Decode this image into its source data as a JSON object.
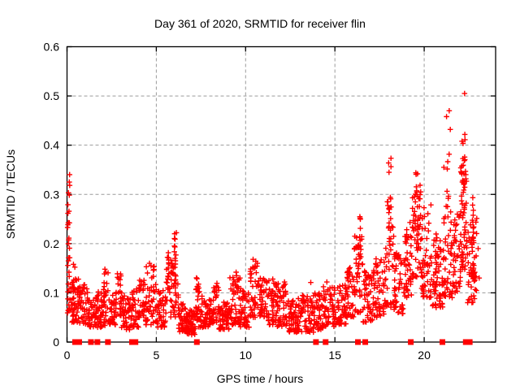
{
  "chart_data": {
    "type": "scatter",
    "title": "Day 361 of 2020, SRMTID for receiver flin",
    "xlabel": "GPS time / hours",
    "ylabel": "SRMTID / TECUs",
    "xlim": [
      0,
      24
    ],
    "ylim": [
      0,
      0.6
    ],
    "grid": true,
    "legend": "none",
    "xticks": [
      {
        "v": 0,
        "label": "0"
      },
      {
        "v": 5,
        "label": "5"
      },
      {
        "v": 10,
        "label": "10"
      },
      {
        "v": 15,
        "label": "15"
      },
      {
        "v": 20,
        "label": "20"
      }
    ],
    "yticks": [
      {
        "v": 0,
        "label": "0"
      },
      {
        "v": 0.1,
        "label": "0.1"
      },
      {
        "v": 0.2,
        "label": "0.2"
      },
      {
        "v": 0.3,
        "label": "0.3"
      },
      {
        "v": 0.4,
        "label": "0.4"
      },
      {
        "v": 0.5,
        "label": "0.5"
      },
      {
        "v": 0.6,
        "label": "0.6"
      }
    ],
    "colors": {
      "marker": "#ff0000",
      "grid": "#9b9b9b",
      "frame": "#000000"
    },
    "seed": 361,
    "series": [
      {
        "name": "srmtid-points",
        "marker": "plus",
        "model": {
          "bands": [
            [
              0.2,
              0.7,
              0.04,
              0.13,
              45
            ],
            [
              0.3,
              0.55,
              0.1,
              0.16,
              8
            ],
            [
              0.7,
              1.2,
              0.035,
              0.12,
              45
            ],
            [
              1.2,
              1.6,
              0.03,
              0.085,
              30
            ],
            [
              1.6,
              2.2,
              0.03,
              0.11,
              55
            ],
            [
              2.05,
              2.35,
              0.06,
              0.145,
              14
            ],
            [
              2.35,
              2.75,
              0.035,
              0.1,
              35
            ],
            [
              2.75,
              3.05,
              0.05,
              0.145,
              25
            ],
            [
              3.05,
              3.65,
              0.025,
              0.095,
              50
            ],
            [
              3.65,
              4.0,
              0.03,
              0.11,
              30
            ],
            [
              4.0,
              4.35,
              0.05,
              0.145,
              28
            ],
            [
              4.35,
              5.0,
              0.035,
              0.155,
              55
            ],
            [
              5.0,
              5.55,
              0.03,
              0.105,
              45
            ],
            [
              5.55,
              5.9,
              0.05,
              0.185,
              25
            ],
            [
              5.9,
              6.25,
              0.05,
              0.16,
              28
            ],
            [
              6.25,
              6.7,
              0.02,
              0.08,
              45
            ],
            [
              6.7,
              7.2,
              0.015,
              0.065,
              50
            ],
            [
              7.2,
              7.5,
              0.03,
              0.135,
              25
            ],
            [
              7.5,
              8.2,
              0.03,
              0.095,
              60
            ],
            [
              8.2,
              8.5,
              0.04,
              0.125,
              25
            ],
            [
              8.5,
              9.1,
              0.025,
              0.09,
              55
            ],
            [
              9.1,
              9.7,
              0.035,
              0.135,
              55
            ],
            [
              9.7,
              10.2,
              0.03,
              0.11,
              45
            ],
            [
              10.2,
              10.75,
              0.05,
              0.165,
              42
            ],
            [
              10.75,
              11.2,
              0.05,
              0.14,
              38
            ],
            [
              11.2,
              11.75,
              0.035,
              0.125,
              45
            ],
            [
              11.75,
              12.3,
              0.03,
              0.12,
              45
            ],
            [
              12.3,
              12.95,
              0.02,
              0.085,
              55
            ],
            [
              12.95,
              13.8,
              0.02,
              0.1,
              70
            ],
            [
              13.8,
              14.35,
              0.025,
              0.1,
              45
            ],
            [
              14.35,
              15.05,
              0.03,
              0.115,
              55
            ],
            [
              15.05,
              15.65,
              0.035,
              0.12,
              50
            ],
            [
              15.65,
              16.05,
              0.05,
              0.155,
              38
            ],
            [
              16.05,
              16.55,
              0.06,
              0.22,
              45
            ],
            [
              16.55,
              17.1,
              0.04,
              0.15,
              48
            ],
            [
              17.1,
              17.75,
              0.05,
              0.17,
              52
            ],
            [
              17.75,
              18.3,
              0.07,
              0.3,
              42
            ],
            [
              18.3,
              18.85,
              0.055,
              0.185,
              48
            ],
            [
              18.85,
              19.3,
              0.09,
              0.25,
              45
            ],
            [
              19.3,
              19.85,
              0.13,
              0.32,
              50
            ],
            [
              19.85,
              20.4,
              0.09,
              0.28,
              50
            ],
            [
              20.4,
              21.05,
              0.07,
              0.22,
              60
            ],
            [
              21.05,
              21.6,
              0.09,
              0.28,
              48
            ],
            [
              21.6,
              22.05,
              0.1,
              0.26,
              40
            ],
            [
              22.05,
              22.4,
              0.14,
              0.38,
              55
            ],
            [
              22.4,
              22.95,
              0.08,
              0.27,
              40
            ],
            [
              22.6,
              22.85,
              0.125,
              0.16,
              22
            ]
          ],
          "columns": [
            [
              0.1,
              0.07,
              0.05,
              0.365,
              34
            ],
            [
              5.68,
              0.05,
              0.1,
              0.185,
              8
            ],
            [
              6.07,
              0.06,
              0.12,
              0.225,
              13
            ],
            [
              7.32,
              0.05,
              0.06,
              0.135,
              8
            ],
            [
              16.35,
              0.08,
              0.13,
              0.258,
              11
            ],
            [
              18.08,
              0.08,
              0.19,
              0.375,
              16
            ],
            [
              19.55,
              0.1,
              0.22,
              0.358,
              14
            ],
            [
              21.3,
              0.1,
              0.29,
              0.4,
              6
            ],
            [
              22.2,
              0.09,
              0.3,
              0.445,
              12
            ],
            [
              22.72,
              0.07,
              0.17,
              0.3,
              10
            ]
          ],
          "points": [
            [
              22.26,
              0.505
            ],
            [
              21.4,
              0.47
            ],
            [
              21.25,
              0.458
            ],
            [
              21.46,
              0.432
            ],
            [
              21.1,
              0.355
            ],
            [
              23.02,
              0.19
            ],
            [
              23.08,
              0.13
            ],
            [
              9.47,
              0.142
            ],
            [
              12.18,
              0.122
            ],
            [
              0.36,
              0.158
            ],
            [
              2.12,
              0.148
            ],
            [
              4.62,
              0.16
            ],
            [
              10.42,
              0.168
            ],
            [
              13.65,
              0.121
            ],
            [
              14.55,
              0.122
            ],
            [
              11.52,
              0.128
            ]
          ]
        }
      },
      {
        "name": "flagged-epochs",
        "marker": "filled-square",
        "y": 0,
        "x": [
          0.45,
          0.68,
          1.34,
          1.7,
          2.29,
          3.64,
          3.83,
          7.27,
          13.94,
          14.48,
          16.29,
          16.7,
          19.25,
          21.02,
          22.33,
          22.55
        ]
      }
    ]
  }
}
